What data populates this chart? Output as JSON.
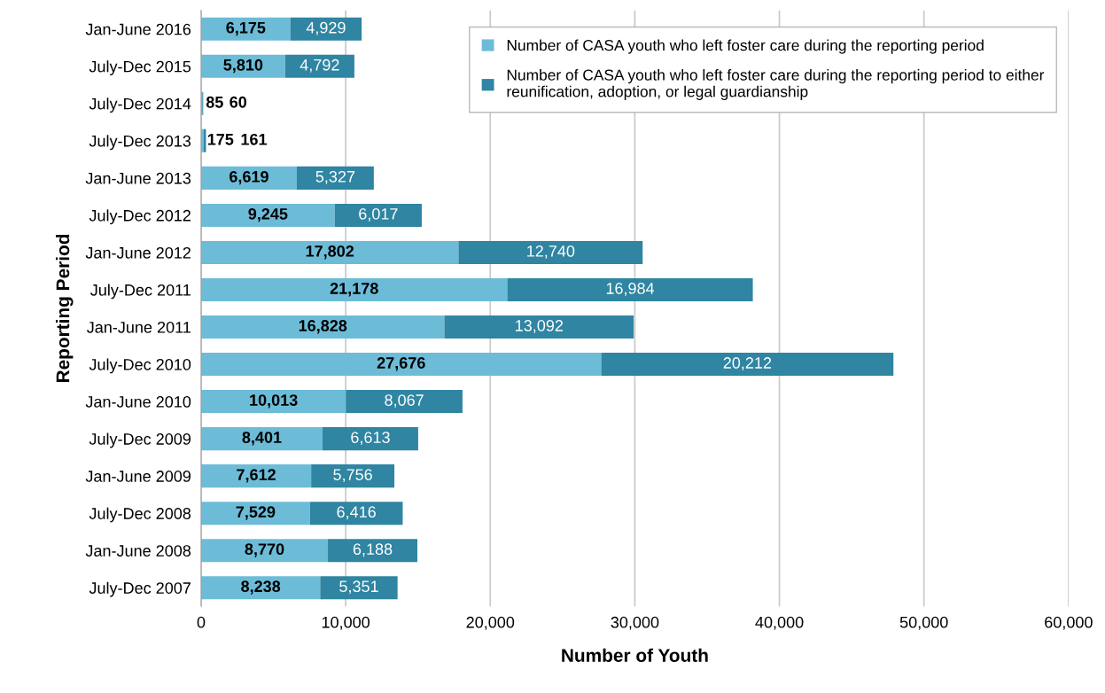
{
  "chart_data": {
    "type": "bar",
    "orientation": "horizontal",
    "stacked": true,
    "xlabel": "Number of Youth",
    "ylabel": "Reporting Period",
    "categories": [
      "Jan-June 2016",
      "July-Dec 2015",
      "July-Dec 2014",
      "July-Dec 2013",
      "Jan-June 2013",
      "July-Dec 2012",
      "Jan-June 2012",
      "July-Dec 2011",
      "Jan-June 2011",
      "July-Dec 2010",
      "Jan-June 2010",
      "July-Dec 2009",
      "Jan-June 2009",
      "July-Dec 2008",
      "Jan-June 2008",
      "July-Dec 2007"
    ],
    "series": [
      {
        "name": "Number of CASA youth who left foster care during the reporting period",
        "color": "#6cbcd8",
        "values": [
          6175,
          5810,
          85,
          175,
          6619,
          9245,
          17802,
          21178,
          16828,
          27676,
          10013,
          8401,
          7612,
          7529,
          8770,
          8238
        ],
        "value_labels": [
          "6,175",
          "5,810",
          "85",
          "175",
          "6,619",
          "9,245",
          "17,802",
          "21,178",
          "16,828",
          "27,676",
          "10,013",
          "8,401",
          "7,612",
          "7,529",
          "8,770",
          "8,238"
        ]
      },
      {
        "name": "Number of CASA youth who left foster care during the reporting period to either reunification, adoption, or legal guardianship",
        "color": "#2f85a2",
        "values": [
          4929,
          4792,
          60,
          161,
          5327,
          6017,
          12740,
          16984,
          13092,
          20212,
          8067,
          6613,
          5756,
          6416,
          6188,
          5351
        ],
        "value_labels": [
          "4,929",
          "4,792",
          "60",
          "161",
          "5,327",
          "6,017",
          "12,740",
          "16,984",
          "13,092",
          "20,212",
          "8,067",
          "6,613",
          "5,756",
          "6,416",
          "6,188",
          "5,351"
        ]
      }
    ],
    "xlim": [
      0,
      60000
    ],
    "xticks": [
      0,
      {
        "value": 10000,
        "label": "10,000"
      },
      {
        "value": 20000,
        "label": "20,000"
      },
      {
        "value": 30000,
        "label": "30,000"
      },
      {
        "value": 40000,
        "label": "40,000"
      },
      {
        "value": 50000,
        "label": "50,000"
      },
      {
        "value": 60000,
        "label": "60,000"
      }
    ],
    "grid": "x",
    "legend": "top right"
  }
}
